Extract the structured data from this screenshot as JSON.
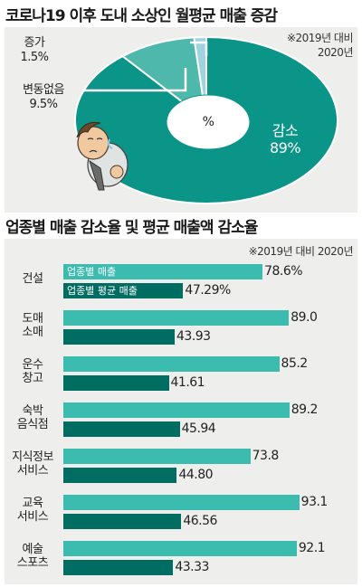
{
  "pie_chart": {
    "title": "코로나19 이후 도내 소상인 월평균 매출 증감",
    "note_line1": "※2019년 대비",
    "note_line2": "2020년",
    "center_label": "%",
    "colors": {
      "main": "#0b9488",
      "accent": "#4fb8ac",
      "sliver": "#9fd3e0"
    }
  },
  "bar_chart": {
    "title": "업종별 매출 감소율 및 평균 매출액 감소율",
    "note": "※2019년 대비 2020년",
    "colors": {
      "sales": "#3bbcaf",
      "avg": "#006d62"
    }
  },
  "chart_data": [
    {
      "type": "pie",
      "title": "코로나19 이후 도내 소상인 월평균 매출 증감",
      "labels": [
        "감소",
        "변동없음",
        "증가"
      ],
      "values": [
        89,
        9.5,
        1.5
      ],
      "value_labels": [
        "89%",
        "9.5%",
        "1.5%"
      ]
    },
    {
      "type": "bar",
      "title": "업종별 매출 감소율 및 평균 매출액 감소율",
      "categories": [
        "건설",
        "도매\n소매",
        "운수\n창고",
        "숙박\n음식점",
        "지식정보\n서비스",
        "교육\n서비스",
        "예술\n스포츠"
      ],
      "series": [
        {
          "name": "업종별 매출",
          "values": [
            78.6,
            89.0,
            85.2,
            89.2,
            73.8,
            93.1,
            92.1
          ],
          "labels": [
            "78.6%",
            "89.0",
            "85.2",
            "89.2",
            "73.8",
            "93.1",
            "92.1"
          ]
        },
        {
          "name": "업종별 평균 매출",
          "values": [
            47.29,
            43.93,
            41.61,
            45.94,
            44.8,
            46.56,
            43.33
          ],
          "labels": [
            "47.29%",
            "43.93",
            "41.61",
            "45.94",
            "44.80",
            "46.56",
            "43.33"
          ]
        }
      ]
    }
  ]
}
